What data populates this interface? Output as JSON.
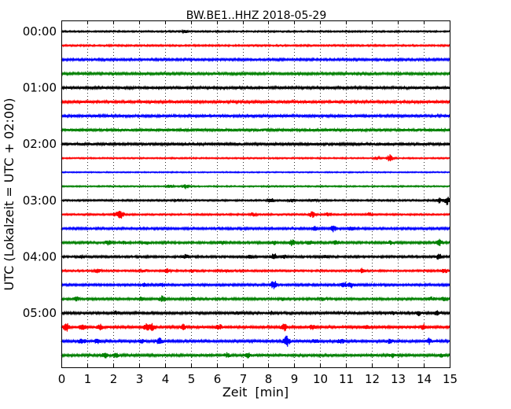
{
  "chart_data": {
    "type": "line",
    "title": "BW.BE1..HHZ 2018-05-29",
    "xlabel": "Zeit  [min]",
    "ylabel": "UTC (Lokalzeit = UTC + 02:00)",
    "xlim": [
      0,
      15
    ],
    "x_ticks": [
      "0",
      "1",
      "2",
      "3",
      "4",
      "5",
      "6",
      "7",
      "8",
      "9",
      "10",
      "11",
      "12",
      "13",
      "14",
      "15"
    ],
    "y_tick_labels": [
      "00:00",
      "01:00",
      "02:00",
      "03:00",
      "04:00",
      "05:00"
    ],
    "grid": "vertical dotted at each minute",
    "trace_colors": [
      "#000000",
      "#ff0000",
      "#0000ff",
      "#008000"
    ],
    "traces": [
      {
        "start": "00:00",
        "color": "#000000",
        "noise": 0.9,
        "events": [
          [
            4.8,
            1.5
          ]
        ]
      },
      {
        "start": "00:15",
        "color": "#ff0000",
        "noise": 1.0,
        "events": []
      },
      {
        "start": "00:30",
        "color": "#0000ff",
        "noise": 1.3,
        "events": []
      },
      {
        "start": "00:45",
        "color": "#008000",
        "noise": 1.4,
        "events": []
      },
      {
        "start": "01:00",
        "color": "#000000",
        "noise": 1.6,
        "events": []
      },
      {
        "start": "01:15",
        "color": "#ff0000",
        "noise": 1.6,
        "events": []
      },
      {
        "start": "01:30",
        "color": "#0000ff",
        "noise": 1.6,
        "events": []
      },
      {
        "start": "01:45",
        "color": "#008000",
        "noise": 1.8,
        "events": []
      },
      {
        "start": "02:00",
        "color": "#000000",
        "noise": 1.8,
        "events": []
      },
      {
        "start": "02:15",
        "color": "#ff0000",
        "noise": 0.8,
        "events": [
          [
            12.2,
            1.5
          ],
          [
            12.7,
            5
          ]
        ]
      },
      {
        "start": "02:30",
        "color": "#0000ff",
        "noise": 0.7,
        "events": []
      },
      {
        "start": "02:45",
        "color": "#008000",
        "noise": 0.8,
        "events": [
          [
            4.2,
            2
          ],
          [
            4.8,
            3
          ]
        ]
      },
      {
        "start": "03:00",
        "color": "#000000",
        "noise": 1.0,
        "events": [
          [
            4.5,
            1.5
          ],
          [
            8.1,
            3
          ],
          [
            8.9,
            2.5
          ],
          [
            9.8,
            1.5
          ],
          [
            14.6,
            3
          ],
          [
            14.9,
            6
          ]
        ]
      },
      {
        "start": "03:15",
        "color": "#ff0000",
        "noise": 1.0,
        "events": [
          [
            2.1,
            2.5
          ],
          [
            2.3,
            5
          ],
          [
            7.4,
            2
          ],
          [
            9.7,
            4
          ],
          [
            10.3,
            2.5
          ],
          [
            11.9,
            2.5
          ]
        ]
      },
      {
        "start": "03:30",
        "color": "#0000ff",
        "noise": 1.3,
        "events": [
          [
            9.8,
            2.5
          ],
          [
            10.5,
            3.5
          ],
          [
            11.2,
            2
          ]
        ]
      },
      {
        "start": "03:45",
        "color": "#008000",
        "noise": 1.3,
        "events": [
          [
            1.8,
            3
          ],
          [
            2.4,
            2
          ],
          [
            3.3,
            2
          ],
          [
            6.2,
            2
          ],
          [
            8.2,
            2.5
          ],
          [
            8.9,
            4
          ],
          [
            9.6,
            2.5
          ],
          [
            10.6,
            2
          ],
          [
            12.7,
            2
          ],
          [
            14.6,
            4
          ]
        ]
      },
      {
        "start": "04:00",
        "color": "#000000",
        "noise": 1.2,
        "events": [
          [
            0.8,
            2
          ],
          [
            4.8,
            2.5
          ],
          [
            7.3,
            2
          ],
          [
            8.2,
            5
          ],
          [
            8.6,
            2
          ],
          [
            10.2,
            2
          ],
          [
            14.6,
            4
          ]
        ]
      },
      {
        "start": "04:15",
        "color": "#ff0000",
        "noise": 1.1,
        "events": [
          [
            1.4,
            2.5
          ],
          [
            3.2,
            2
          ],
          [
            4.1,
            2.5
          ],
          [
            5.1,
            2
          ],
          [
            6.4,
            2
          ],
          [
            11.6,
            3
          ],
          [
            14.8,
            3
          ]
        ]
      },
      {
        "start": "04:30",
        "color": "#0000ff",
        "noise": 1.3,
        "events": [
          [
            3.2,
            2
          ],
          [
            3.9,
            2
          ],
          [
            8.2,
            6
          ],
          [
            10.9,
            4
          ],
          [
            11.2,
            3.5
          ]
        ]
      },
      {
        "start": "04:45",
        "color": "#008000",
        "noise": 1.3,
        "events": [
          [
            0.6,
            2.5
          ],
          [
            3.1,
            2.5
          ],
          [
            3.9,
            4
          ],
          [
            5.1,
            2
          ],
          [
            8.5,
            2
          ],
          [
            10.1,
            2
          ],
          [
            14.3,
            2
          ],
          [
            14.8,
            2.5
          ]
        ]
      },
      {
        "start": "05:00",
        "color": "#000000",
        "noise": 1.4,
        "events": [
          [
            2.1,
            2
          ],
          [
            6.8,
            2
          ],
          [
            8.1,
            2
          ],
          [
            12.8,
            2
          ],
          [
            13.8,
            3
          ],
          [
            14.5,
            2.5
          ]
        ]
      },
      {
        "start": "05:15",
        "color": "#ff0000",
        "noise": 1.6,
        "events": [
          [
            0.2,
            5
          ],
          [
            0.8,
            3.5
          ],
          [
            1.5,
            3
          ],
          [
            3.3,
            4
          ],
          [
            3.5,
            5
          ],
          [
            4.7,
            3
          ],
          [
            6.1,
            3
          ],
          [
            8.6,
            5
          ],
          [
            9.7,
            3
          ],
          [
            11.8,
            2.5
          ],
          [
            14.0,
            3
          ]
        ]
      },
      {
        "start": "05:30",
        "color": "#0000ff",
        "noise": 1.5,
        "events": [
          [
            0.8,
            4
          ],
          [
            1.4,
            3
          ],
          [
            3.1,
            2.5
          ],
          [
            3.8,
            4
          ],
          [
            8.7,
            7
          ],
          [
            9.8,
            2.5
          ],
          [
            10.8,
            3
          ],
          [
            12.7,
            3
          ],
          [
            14.2,
            3.5
          ]
        ]
      },
      {
        "start": "05:45",
        "color": "#008000",
        "noise": 1.5,
        "events": [
          [
            1.7,
            3
          ],
          [
            2.1,
            2.5
          ],
          [
            6.4,
            2.5
          ],
          [
            7.2,
            3
          ],
          [
            12.8,
            2.5
          ],
          [
            14.7,
            2
          ]
        ]
      }
    ]
  }
}
